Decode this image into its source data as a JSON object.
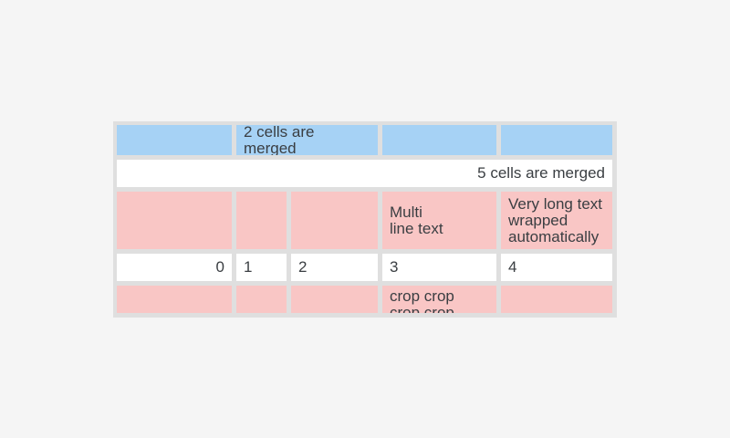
{
  "theme": {
    "page_bg": "#f5f5f5",
    "frame": "#dfdfdf",
    "cell_blue": "#a6d2f5",
    "cell_white": "#ffffff",
    "cell_pink": "#f9c6c5",
    "text": "#3a3e42"
  },
  "table": {
    "row1": {
      "merged_label": "2 cells are merged"
    },
    "row2": {
      "merged_label": "5 cells are merged"
    },
    "row3": {
      "multiline_label": "Multi\nline text",
      "wrapped_label": "Very long text\nwrapped\nautomatically"
    },
    "row4": {
      "c1": "0",
      "c2": "1",
      "c3": "2",
      "c4": "3",
      "c5": "4"
    },
    "row5": {
      "crop_label": "crop crop\ncrop crop"
    }
  }
}
